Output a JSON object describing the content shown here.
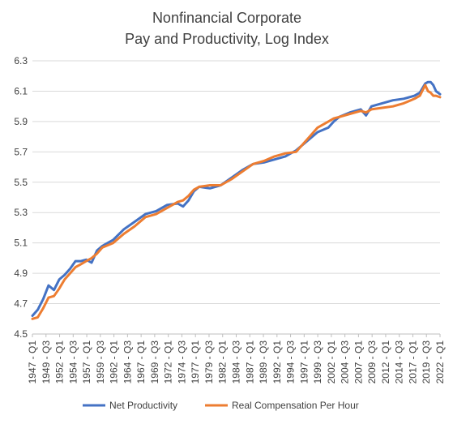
{
  "chart_data": {
    "type": "line",
    "title": [
      "Nonfinancial Corporate",
      "Pay and Productivity, Log Index"
    ],
    "xlabel": "",
    "ylabel": "",
    "ylim": [
      4.5,
      6.3
    ],
    "yticks": [
      "4.5",
      "4.7",
      "4.9",
      "5.1",
      "5.3",
      "5.5",
      "5.7",
      "5.9",
      "6.1",
      "6.3"
    ],
    "grid": true,
    "legend_position": "bottom",
    "xtick_labels": [
      "1947 - Q1",
      "1949 - Q3",
      "1952 - Q1",
      "1954 - Q3",
      "1957 - Q1",
      "1959 - Q3",
      "1962 - Q1",
      "1964 - Q3",
      "1967 - Q1",
      "1969 - Q3",
      "1972 - Q1",
      "1974 - Q3",
      "1977 - Q1",
      "1979 - Q3",
      "1982 - Q1",
      "1984 - Q3",
      "1987 - Q1",
      "1989 - Q3",
      "1992 - Q1",
      "1994 - Q3",
      "1997 - Q1",
      "1999 - Q3",
      "2002 - Q1",
      "2004 - Q3",
      "2007 - Q1",
      "2009 - Q3",
      "2012 - Q1",
      "2014 - Q3",
      "2017 - Q1",
      "2019 - Q3",
      "2022 - Q1"
    ],
    "x": [
      1947.0,
      1948.0,
      1949.0,
      1950.0,
      1951.0,
      1952.0,
      1953.0,
      1954.0,
      1955.0,
      1956.0,
      1957.0,
      1958.0,
      1959.0,
      1960.0,
      1962.0,
      1964.0,
      1966.0,
      1968.0,
      1970.0,
      1972.0,
      1974.0,
      1975.0,
      1976.0,
      1977.0,
      1978.0,
      1980.0,
      1982.0,
      1984.0,
      1986.0,
      1988.0,
      1990.0,
      1992.0,
      1994.0,
      1996.0,
      1998.0,
      2000.0,
      2002.0,
      2003.0,
      2004.0,
      2006.0,
      2008.0,
      2009.0,
      2010.0,
      2012.0,
      2014.0,
      2016.0,
      2018.0,
      2019.0,
      2020.0,
      2020.5,
      2021.0,
      2021.5,
      2022.0,
      2022.75
    ],
    "series": [
      {
        "name": "Net Productivity",
        "color": "#4472C4",
        "values": [
          4.62,
          4.66,
          4.73,
          4.82,
          4.79,
          4.86,
          4.89,
          4.93,
          4.98,
          4.98,
          4.99,
          4.97,
          5.05,
          5.08,
          5.12,
          5.19,
          5.24,
          5.29,
          5.31,
          5.35,
          5.36,
          5.34,
          5.38,
          5.44,
          5.47,
          5.46,
          5.48,
          5.53,
          5.58,
          5.62,
          5.63,
          5.65,
          5.67,
          5.71,
          5.77,
          5.83,
          5.86,
          5.9,
          5.93,
          5.96,
          5.98,
          5.94,
          6.0,
          6.02,
          6.04,
          6.05,
          6.07,
          6.09,
          6.15,
          6.16,
          6.16,
          6.14,
          6.1,
          6.08
        ]
      },
      {
        "name": "Real Compensation Per Hour",
        "color": "#ED7D31",
        "values": [
          4.6,
          4.61,
          4.67,
          4.74,
          4.75,
          4.8,
          4.86,
          4.9,
          4.94,
          4.96,
          4.98,
          5.0,
          5.03,
          5.07,
          5.1,
          5.16,
          5.21,
          5.27,
          5.29,
          5.33,
          5.37,
          5.38,
          5.41,
          5.45,
          5.47,
          5.48,
          5.48,
          5.52,
          5.57,
          5.62,
          5.64,
          5.67,
          5.69,
          5.7,
          5.78,
          5.86,
          5.9,
          5.92,
          5.93,
          5.95,
          5.97,
          5.96,
          5.98,
          5.99,
          6.0,
          6.02,
          6.05,
          6.07,
          6.14,
          6.1,
          6.09,
          6.07,
          6.07,
          6.06
        ]
      }
    ]
  }
}
